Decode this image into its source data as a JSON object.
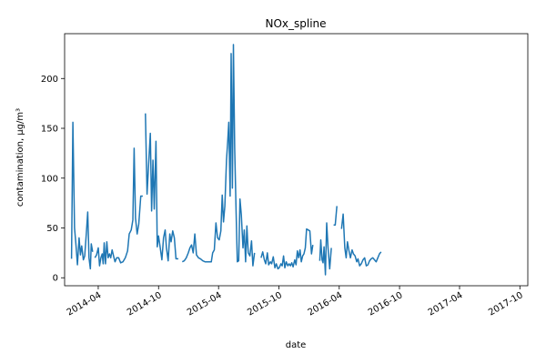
{
  "chart_data": {
    "type": "line",
    "title": "NOx_spline",
    "xlabel": "date",
    "ylabel": "contamination, µg/m³",
    "color": "#1f77b4",
    "grid": false,
    "xlim": [
      "2013-12-20",
      "2017-10-25"
    ],
    "ylim": [
      -8,
      245
    ],
    "xticks": [
      {
        "date": "2014-04-01",
        "label": "2014-04"
      },
      {
        "date": "2014-10-01",
        "label": "2014-10"
      },
      {
        "date": "2015-04-01",
        "label": "2015-04"
      },
      {
        "date": "2015-10-01",
        "label": "2015-10"
      },
      {
        "date": "2016-04-01",
        "label": "2016-04"
      },
      {
        "date": "2016-10-01",
        "label": "2016-10"
      },
      {
        "date": "2017-04-01",
        "label": "2017-04"
      },
      {
        "date": "2017-10-01",
        "label": "2017-10"
      }
    ],
    "yticks": [
      0,
      50,
      100,
      150,
      200
    ],
    "series": [
      {
        "segments": [
          [
            [
              "2014-01-10",
              19
            ],
            [
              "2014-01-14",
              156
            ],
            [
              "2014-01-19",
              50
            ],
            [
              "2014-01-23",
              35
            ],
            [
              "2014-01-28",
              13
            ],
            [
              "2014-02-02",
              40
            ],
            [
              "2014-02-06",
              23
            ],
            [
              "2014-02-10",
              32
            ],
            [
              "2014-02-15",
              18
            ],
            [
              "2014-02-19",
              22
            ],
            [
              "2014-02-24",
              45
            ],
            [
              "2014-02-28",
              66
            ],
            [
              "2014-03-04",
              20
            ],
            [
              "2014-03-08",
              9
            ],
            [
              "2014-03-11",
              34
            ],
            [
              "2014-03-15",
              26
            ]
          ],
          [
            [
              "2014-03-22",
              20
            ],
            [
              "2014-03-27",
              23
            ],
            [
              "2014-04-01",
              30
            ],
            [
              "2014-04-05",
              12
            ],
            [
              "2014-04-09",
              20
            ],
            [
              "2014-04-13",
              24
            ],
            [
              "2014-04-16",
              14
            ],
            [
              "2014-04-19",
              35
            ],
            [
              "2014-04-23",
              14
            ],
            [
              "2014-04-27",
              36
            ],
            [
              "2014-05-01",
              20
            ],
            [
              "2014-05-05",
              24
            ],
            [
              "2014-05-09",
              20
            ],
            [
              "2014-05-13",
              28
            ],
            [
              "2014-05-18",
              21
            ],
            [
              "2014-05-22",
              16
            ],
            [
              "2014-05-27",
              20
            ],
            [
              "2014-06-02",
              20
            ],
            [
              "2014-06-08",
              15
            ],
            [
              "2014-06-15",
              16
            ],
            [
              "2014-06-22",
              20
            ],
            [
              "2014-06-29",
              27
            ],
            [
              "2014-07-04",
              44
            ],
            [
              "2014-07-10",
              48
            ],
            [
              "2014-07-15",
              58
            ],
            [
              "2014-07-19",
              130
            ],
            [
              "2014-07-23",
              60
            ],
            [
              "2014-07-28",
              44
            ],
            [
              "2014-08-02",
              54
            ],
            [
              "2014-08-08",
              82
            ],
            [
              "2014-08-14",
              82
            ]
          ],
          [
            [
              "2014-08-22",
              165
            ],
            [
              "2014-08-27",
              84
            ],
            [
              "2014-09-01",
              115
            ],
            [
              "2014-09-06",
              145
            ],
            [
              "2014-09-10",
              67
            ],
            [
              "2014-09-14",
              118
            ],
            [
              "2014-09-18",
              69
            ],
            [
              "2014-09-23",
              137
            ],
            [
              "2014-09-27",
              31
            ],
            [
              "2014-10-01",
              42
            ],
            [
              "2014-10-06",
              30
            ],
            [
              "2014-10-11",
              18
            ],
            [
              "2014-10-16",
              40
            ],
            [
              "2014-10-21",
              48
            ],
            [
              "2014-10-25",
              30
            ],
            [
              "2014-10-30",
              17
            ],
            [
              "2014-11-04",
              44
            ],
            [
              "2014-11-08",
              36
            ],
            [
              "2014-11-13",
              47
            ],
            [
              "2014-11-18",
              40
            ],
            [
              "2014-11-23",
              19
            ],
            [
              "2014-11-30",
              19
            ]
          ],
          [
            [
              "2014-12-12",
              16
            ],
            [
              "2014-12-18",
              17
            ],
            [
              "2014-12-24",
              20
            ],
            [
              "2014-12-30",
              25
            ],
            [
              "2015-01-04",
              30
            ],
            [
              "2015-01-09",
              33
            ],
            [
              "2015-01-14",
              25
            ],
            [
              "2015-01-19",
              44
            ],
            [
              "2015-01-24",
              23
            ],
            [
              "2015-01-30",
              20
            ],
            [
              "2015-02-05",
              19
            ],
            [
              "2015-02-12",
              17
            ],
            [
              "2015-02-19",
              16
            ],
            [
              "2015-02-26",
              16
            ],
            [
              "2015-03-05",
              16
            ],
            [
              "2015-03-10",
              16
            ],
            [
              "2015-03-14",
              25
            ],
            [
              "2015-03-19",
              28
            ],
            [
              "2015-03-24",
              55
            ],
            [
              "2015-03-29",
              40
            ],
            [
              "2015-04-03",
              38
            ],
            [
              "2015-04-08",
              47
            ],
            [
              "2015-04-12",
              83
            ],
            [
              "2015-04-16",
              56
            ],
            [
              "2015-04-20",
              72
            ],
            [
              "2015-04-25",
              118
            ],
            [
              "2015-04-29",
              138
            ],
            [
              "2015-05-02",
              156
            ],
            [
              "2015-05-06",
              82
            ],
            [
              "2015-05-09",
              225
            ],
            [
              "2015-05-13",
              90
            ],
            [
              "2015-05-16",
              234
            ],
            [
              "2015-05-20",
              130
            ],
            [
              "2015-05-24",
              68
            ],
            [
              "2015-05-28",
              16
            ],
            [
              "2015-06-01",
              17
            ],
            [
              "2015-06-05",
              79
            ],
            [
              "2015-06-09",
              63
            ],
            [
              "2015-06-14",
              30
            ],
            [
              "2015-06-18",
              48
            ],
            [
              "2015-06-22",
              16
            ],
            [
              "2015-06-26",
              52
            ],
            [
              "2015-06-30",
              25
            ],
            [
              "2015-07-05",
              22
            ],
            [
              "2015-07-10",
              37
            ],
            [
              "2015-07-14",
              12
            ],
            [
              "2015-07-19",
              25
            ]
          ],
          [
            [
              "2015-08-08",
              20
            ],
            [
              "2015-08-13",
              26
            ],
            [
              "2015-08-18",
              18
            ],
            [
              "2015-08-22",
              14
            ],
            [
              "2015-08-27",
              25
            ],
            [
              "2015-08-31",
              13
            ],
            [
              "2015-09-05",
              16
            ],
            [
              "2015-09-09",
              14
            ],
            [
              "2015-09-14",
              21
            ],
            [
              "2015-09-19",
              10
            ],
            [
              "2015-09-23",
              14
            ],
            [
              "2015-09-28",
              9
            ],
            [
              "2015-10-02",
              10
            ],
            [
              "2015-10-07",
              14
            ],
            [
              "2015-10-11",
              12
            ],
            [
              "2015-10-15",
              22
            ],
            [
              "2015-10-19",
              10
            ],
            [
              "2015-10-23",
              16
            ],
            [
              "2015-10-28",
              12
            ],
            [
              "2015-11-01",
              14
            ],
            [
              "2015-11-05",
              12
            ],
            [
              "2015-11-09",
              15
            ],
            [
              "2015-11-13",
              11
            ],
            [
              "2015-11-18",
              18
            ],
            [
              "2015-11-22",
              13
            ],
            [
              "2015-11-26",
              27
            ],
            [
              "2015-11-30",
              20
            ],
            [
              "2015-12-04",
              28
            ],
            [
              "2015-12-08",
              16
            ],
            [
              "2015-12-12",
              22
            ],
            [
              "2015-12-16",
              24
            ],
            [
              "2015-12-20",
              30
            ],
            [
              "2015-12-24",
              49
            ],
            [
              "2015-12-29",
              48
            ],
            [
              "2016-01-03",
              47
            ],
            [
              "2016-01-08",
              24
            ],
            [
              "2016-01-12",
              33
            ]
          ],
          [
            [
              "2016-02-02",
              17
            ],
            [
              "2016-02-05",
              38
            ],
            [
              "2016-02-09",
              18
            ],
            [
              "2016-02-12",
              15
            ],
            [
              "2016-02-15",
              31
            ],
            [
              "2016-02-19",
              3
            ],
            [
              "2016-02-23",
              55
            ],
            [
              "2016-02-27",
              30
            ],
            [
              "2016-03-03",
              9
            ],
            [
              "2016-03-08",
              30
            ]
          ],
          [
            [
              "2016-03-15",
              53
            ],
            [
              "2016-03-20",
              53
            ],
            [
              "2016-03-25",
              72
            ]
          ],
          [
            [
              "2016-04-08",
              49
            ],
            [
              "2016-04-13",
              64
            ],
            [
              "2016-04-18",
              30
            ],
            [
              "2016-04-22",
              20
            ],
            [
              "2016-04-26",
              36
            ],
            [
              "2016-04-30",
              28
            ],
            [
              "2016-05-05",
              20
            ],
            [
              "2016-05-10",
              28
            ],
            [
              "2016-05-14",
              24
            ],
            [
              "2016-05-19",
              22
            ],
            [
              "2016-05-24",
              16
            ],
            [
              "2016-05-28",
              19
            ],
            [
              "2016-06-02",
              12
            ],
            [
              "2016-06-07",
              14
            ],
            [
              "2016-06-12",
              18
            ],
            [
              "2016-06-17",
              20
            ],
            [
              "2016-06-22",
              12
            ],
            [
              "2016-06-27",
              13
            ],
            [
              "2016-07-02",
              17
            ],
            [
              "2016-07-07",
              19
            ],
            [
              "2016-07-12",
              20
            ],
            [
              "2016-07-17",
              18
            ],
            [
              "2016-07-22",
              16
            ],
            [
              "2016-07-27",
              20
            ],
            [
              "2016-08-01",
              24
            ],
            [
              "2016-08-06",
              26
            ]
          ]
        ]
      }
    ]
  }
}
